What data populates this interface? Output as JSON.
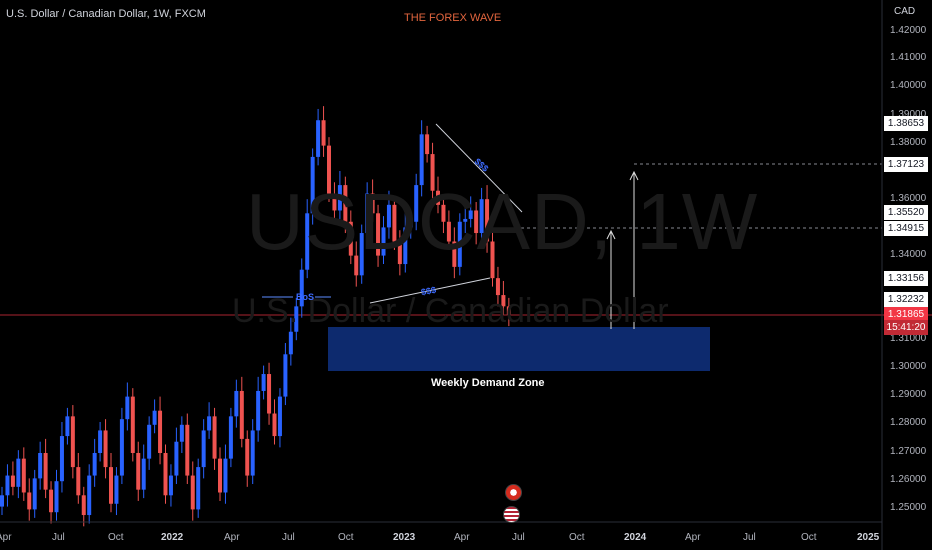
{
  "header": {
    "symbol_line": "U.S. Dollar / Canadian Dollar, 1W, FXCM",
    "brand": "THE FOREX WAVE"
  },
  "watermark": {
    "big": "USDCAD, 1W",
    "small": "U.S. Dollar / Canadian Dollar"
  },
  "price_axis": {
    "title": "CAD",
    "ticks": [
      "1.42000",
      "1.41000",
      "1.40000",
      "1.39000",
      "1.38000",
      "1.36000",
      "1.34000",
      "1.31000",
      "1.30000",
      "1.29000",
      "1.28000",
      "1.27000",
      "1.26000",
      "1.25000"
    ],
    "tags": [
      "1.38653",
      "1.37123",
      "1.35520",
      "1.34915",
      "1.33156",
      "1.32232"
    ],
    "current_price": "1.31865",
    "countdown": "15:41:20"
  },
  "time_axis": {
    "labels": [
      "Apr",
      "Jul",
      "Oct",
      "2022",
      "Apr",
      "Jul",
      "Oct",
      "2023",
      "Apr",
      "Jul",
      "Oct",
      "2024",
      "Apr",
      "Jul",
      "Oct",
      "2025"
    ]
  },
  "annotations": {
    "bos": "BoS",
    "liquidity_top": "$$$",
    "liquidity_bottom": "$$$",
    "zone_label": "Weekly Demand Zone"
  },
  "colors": {
    "bull": "#2962ff",
    "bear": "#ef5350",
    "zone": "#0d2a6e",
    "current_line": "#f23645"
  },
  "chart_data": {
    "type": "candlestick",
    "title": "U.S. Dollar / Canadian Dollar, 1W, FXCM",
    "price_range": [
      1.243,
      1.425
    ],
    "demand_zone": {
      "low": 1.299,
      "high": 1.313,
      "label": "Weekly Demand Zone"
    },
    "targets": [
      1.34915,
      1.37123
    ],
    "current_price": 1.31865,
    "series_close": [
      1.255,
      1.262,
      1.258,
      1.268,
      1.256,
      1.25,
      1.261,
      1.27,
      1.257,
      1.249,
      1.26,
      1.276,
      1.283,
      1.265,
      1.255,
      1.248,
      1.262,
      1.27,
      1.278,
      1.265,
      1.252,
      1.262,
      1.282,
      1.29,
      1.27,
      1.257,
      1.268,
      1.28,
      1.285,
      1.27,
      1.255,
      1.262,
      1.274,
      1.28,
      1.262,
      1.25,
      1.265,
      1.278,
      1.283,
      1.268,
      1.256,
      1.268,
      1.283,
      1.292,
      1.275,
      1.262,
      1.278,
      1.292,
      1.298,
      1.284,
      1.276,
      1.29,
      1.305,
      1.313,
      1.322,
      1.335,
      1.355,
      1.375,
      1.388,
      1.379,
      1.362,
      1.356,
      1.365,
      1.352,
      1.34,
      1.333,
      1.348,
      1.362,
      1.355,
      1.34,
      1.35,
      1.358,
      1.345,
      1.337,
      1.35,
      1.352,
      1.365,
      1.383,
      1.376,
      1.363,
      1.358,
      1.352,
      1.345,
      1.336,
      1.352,
      1.353,
      1.356,
      1.348,
      1.36,
      1.345,
      1.332,
      1.326,
      1.322,
      1.319
    ]
  }
}
